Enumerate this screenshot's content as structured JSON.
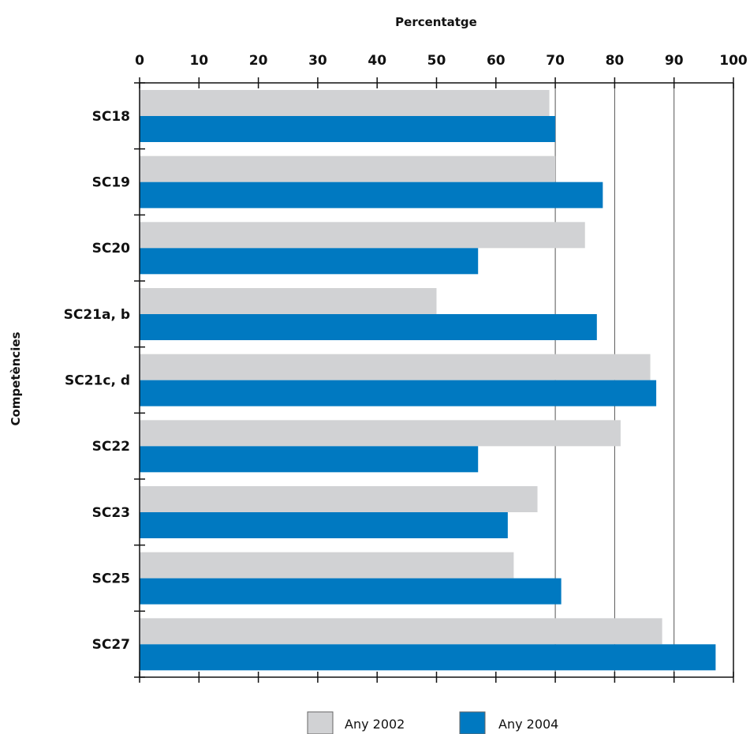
{
  "chart_data": {
    "type": "bar",
    "orientation": "horizontal",
    "xlabel": "Percentatge",
    "ylabel": "Competències",
    "xlim": [
      0,
      100
    ],
    "x_ticks": [
      0,
      10,
      20,
      30,
      40,
      50,
      60,
      70,
      80,
      90,
      100
    ],
    "grid": "vertical lines at 70, 80, 90",
    "categories": [
      "SC18",
      "SC19",
      "SC20",
      "SC21a, b",
      "SC21c, d",
      "SC22",
      "SC23",
      "SC25",
      "SC27"
    ],
    "series": [
      {
        "name": "Any 2002",
        "color": "#d1d2d4",
        "values": [
          69,
          70,
          75,
          50,
          86,
          81,
          67,
          63,
          88
        ]
      },
      {
        "name": "Any 2004",
        "color": "#0079c1",
        "values": [
          70,
          78,
          57,
          77,
          87,
          57,
          62,
          71,
          97
        ]
      }
    ],
    "legend_position": "bottom-center"
  }
}
